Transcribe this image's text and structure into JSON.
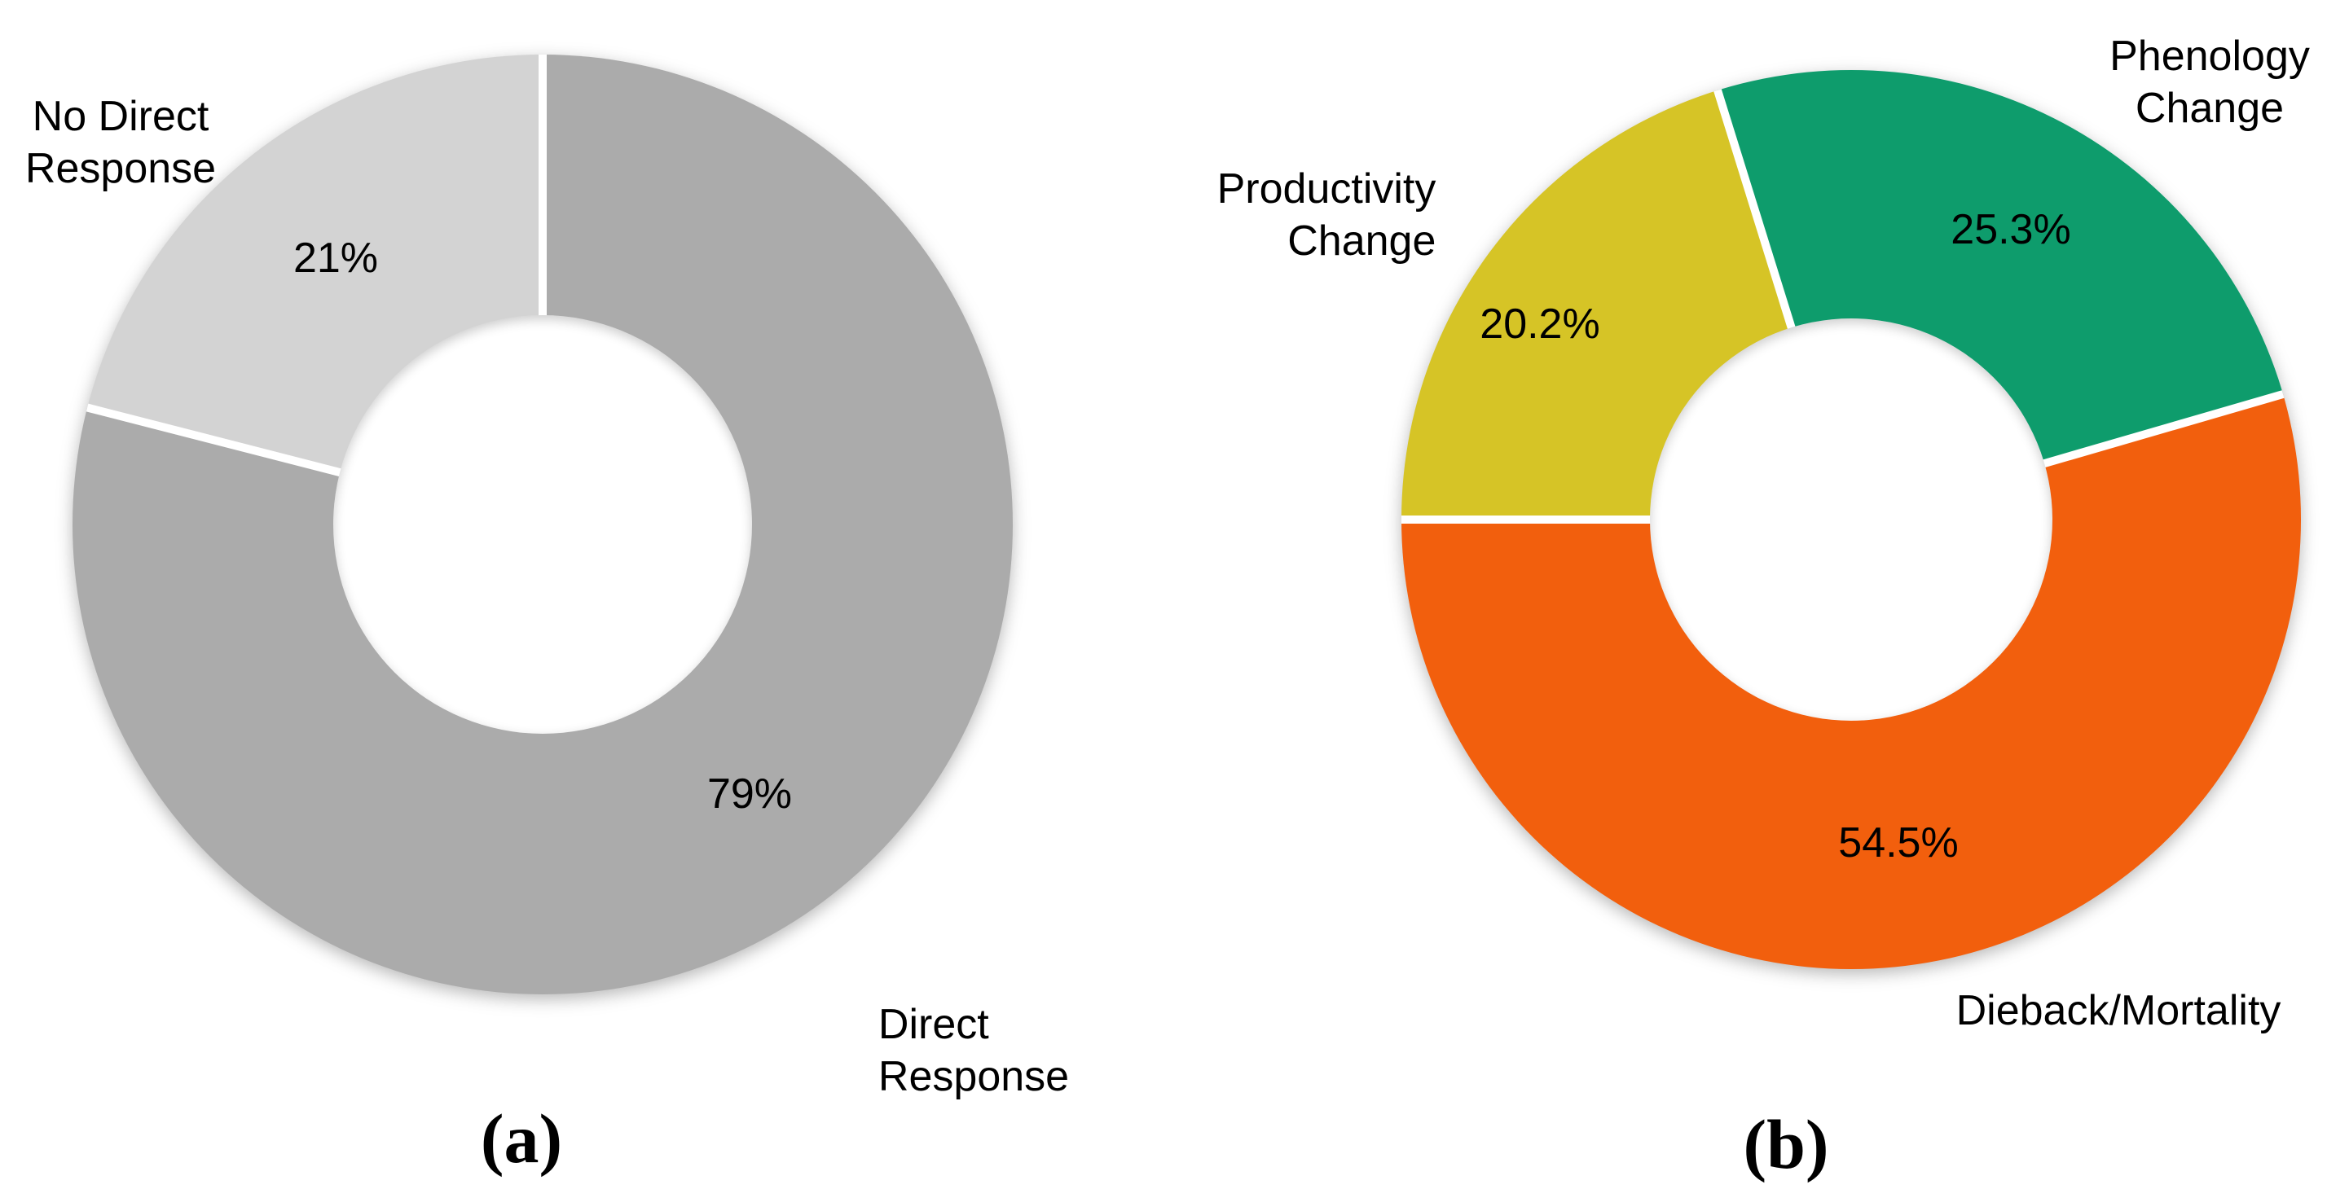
{
  "figure": {
    "background_color": "#ffffff",
    "text_color": "#000000",
    "caption_a": "(a)",
    "caption_b": "(b)"
  },
  "chart_data": [
    {
      "id": "a",
      "type": "pie",
      "subtype": "donut",
      "caption": "(a)",
      "start_angle_deg_clockwise_from_top": 0,
      "hole_ratio": 0.445,
      "divider_color": "#ffffff",
      "slices": [
        {
          "label": "Direct Response",
          "value": 79,
          "display": "79%",
          "color": "#ABABAB"
        },
        {
          "label": "No Direct Response",
          "value": 21,
          "display": "21%",
          "color": "#D3D3D3"
        }
      ]
    },
    {
      "id": "b",
      "type": "pie",
      "subtype": "donut",
      "caption": "(b)",
      "start_angle_deg_clockwise_from_top": -17.28,
      "hole_ratio": 0.447,
      "divider_color": "#ffffff",
      "slices": [
        {
          "label": "Phenology Change",
          "value": 25.3,
          "display": "25.3%",
          "color": "#0E9C6C"
        },
        {
          "label": "Dieback/Mortality",
          "value": 54.5,
          "display": "54.5%",
          "color": "#F25F0D"
        },
        {
          "label": "Productivity Change",
          "value": 20.2,
          "display": "20.2%",
          "color": "#D6C426"
        }
      ]
    }
  ],
  "labels": {
    "no_direct_response": "No Direct\nResponse",
    "pct_21": "21%",
    "direct_response": "Direct\nResponse",
    "pct_79": "79%",
    "productivity_change": "Productivity\nChange",
    "pct_202": "20.2%",
    "phenology_change": "Phenology\nChange",
    "pct_253": "25.3%",
    "dieback_mortality": "Dieback/Mortality",
    "pct_545": "54.5%",
    "caption_a": "(a)",
    "caption_b": "(b)"
  }
}
